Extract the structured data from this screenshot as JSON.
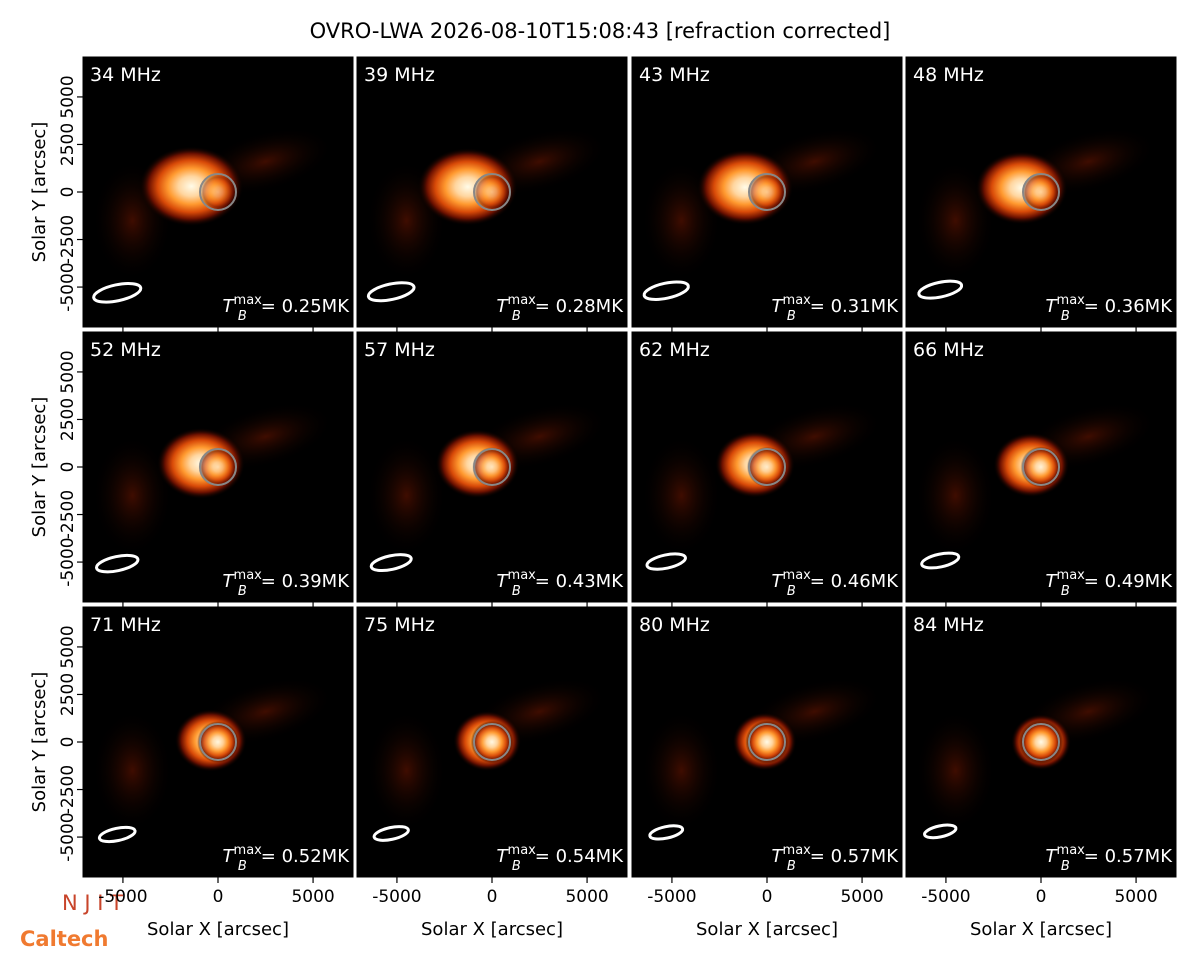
{
  "title": "OVRO-LWA 2026-08-10T15:08:43 [refraction corrected]",
  "x_label": "Solar X [arcsec]",
  "y_label": "Solar Y [arcsec]",
  "logos": [
    "N J I T",
    "Caltech"
  ],
  "chart_data": [
    {
      "type": "image",
      "title": "34 MHz",
      "annotation_symbol": "T",
      "annotation_sub": "B",
      "annotation_sup": "max",
      "annotation": "= 0.25MK",
      "xlim": [
        -7100,
        7100
      ],
      "ylim": [
        -7100,
        7100
      ],
      "xticks": [
        -5000,
        0,
        5000
      ],
      "yticks": [
        -5000,
        -2500,
        0,
        2500,
        5000
      ]
    },
    {
      "type": "image",
      "title": "39 MHz",
      "annotation_symbol": "T",
      "annotation_sub": "B",
      "annotation_sup": "max",
      "annotation": "= 0.28MK",
      "xlim": [
        -7100,
        7100
      ],
      "ylim": [
        -7100,
        7100
      ],
      "xticks": [
        -5000,
        0,
        5000
      ],
      "yticks": [
        -5000,
        -2500,
        0,
        2500,
        5000
      ]
    },
    {
      "type": "image",
      "title": "43 MHz",
      "annotation_symbol": "T",
      "annotation_sub": "B",
      "annotation_sup": "max",
      "annotation": "= 0.31MK",
      "xlim": [
        -7100,
        7100
      ],
      "ylim": [
        -7100,
        7100
      ],
      "xticks": [
        -5000,
        0,
        5000
      ],
      "yticks": [
        -5000,
        -2500,
        0,
        2500,
        5000
      ]
    },
    {
      "type": "image",
      "title": "48 MHz",
      "annotation_symbol": "T",
      "annotation_sub": "B",
      "annotation_sup": "max",
      "annotation": "= 0.36MK",
      "xlim": [
        -7100,
        7100
      ],
      "ylim": [
        -7100,
        7100
      ],
      "xticks": [
        -5000,
        0,
        5000
      ],
      "yticks": [
        -5000,
        -2500,
        0,
        2500,
        5000
      ]
    },
    {
      "type": "image",
      "title": "52 MHz",
      "annotation_symbol": "T",
      "annotation_sub": "B",
      "annotation_sup": "max",
      "annotation": "= 0.39MK",
      "xlim": [
        -7100,
        7100
      ],
      "ylim": [
        -7100,
        7100
      ],
      "xticks": [
        -5000,
        0,
        5000
      ],
      "yticks": [
        -5000,
        -2500,
        0,
        2500,
        5000
      ]
    },
    {
      "type": "image",
      "title": "57 MHz",
      "annotation_symbol": "T",
      "annotation_sub": "B",
      "annotation_sup": "max",
      "annotation": "= 0.43MK",
      "xlim": [
        -7100,
        7100
      ],
      "ylim": [
        -7100,
        7100
      ],
      "xticks": [
        -5000,
        0,
        5000
      ],
      "yticks": [
        -5000,
        -2500,
        0,
        2500,
        5000
      ]
    },
    {
      "type": "image",
      "title": "62 MHz",
      "annotation_symbol": "T",
      "annotation_sub": "B",
      "annotation_sup": "max",
      "annotation": "= 0.46MK",
      "xlim": [
        -7100,
        7100
      ],
      "ylim": [
        -7100,
        7100
      ],
      "xticks": [
        -5000,
        0,
        5000
      ],
      "yticks": [
        -5000,
        -2500,
        0,
        2500,
        5000
      ]
    },
    {
      "type": "image",
      "title": "66 MHz",
      "annotation_symbol": "T",
      "annotation_sub": "B",
      "annotation_sup": "max",
      "annotation": "= 0.49MK",
      "xlim": [
        -7100,
        7100
      ],
      "ylim": [
        -7100,
        7100
      ],
      "xticks": [
        -5000,
        0,
        5000
      ],
      "yticks": [
        -5000,
        -2500,
        0,
        2500,
        5000
      ]
    },
    {
      "type": "image",
      "title": "71 MHz",
      "annotation_symbol": "T",
      "annotation_sub": "B",
      "annotation_sup": "max",
      "annotation": "= 0.52MK",
      "xlim": [
        -7100,
        7100
      ],
      "ylim": [
        -7100,
        7100
      ],
      "xticks": [
        -5000,
        0,
        5000
      ],
      "yticks": [
        -5000,
        -2500,
        0,
        2500,
        5000
      ]
    },
    {
      "type": "image",
      "title": "75 MHz",
      "annotation_symbol": "T",
      "annotation_sub": "B",
      "annotation_sup": "max",
      "annotation": "= 0.54MK",
      "xlim": [
        -7100,
        7100
      ],
      "ylim": [
        -7100,
        7100
      ],
      "xticks": [
        -5000,
        0,
        5000
      ],
      "yticks": [
        -5000,
        -2500,
        0,
        2500,
        5000
      ]
    },
    {
      "type": "image",
      "title": "80 MHz",
      "annotation_symbol": "T",
      "annotation_sub": "B",
      "annotation_sup": "max",
      "annotation": "= 0.57MK",
      "xlim": [
        -7100,
        7100
      ],
      "ylim": [
        -7100,
        7100
      ],
      "xticks": [
        -5000,
        0,
        5000
      ],
      "yticks": [
        -5000,
        -2500,
        0,
        2500,
        5000
      ]
    },
    {
      "type": "image",
      "title": "84 MHz",
      "annotation_symbol": "T",
      "annotation_sub": "B",
      "annotation_sup": "max",
      "annotation": "= 0.57MK",
      "xlim": [
        -7100,
        7100
      ],
      "ylim": [
        -7100,
        7100
      ],
      "xticks": [
        -5000,
        0,
        5000
      ],
      "yticks": [
        -5000,
        -2500,
        0,
        2500,
        5000
      ]
    }
  ]
}
